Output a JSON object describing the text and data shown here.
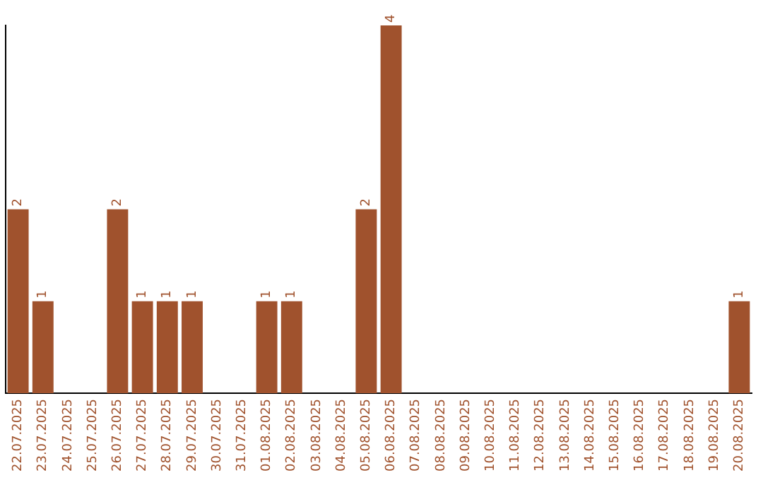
{
  "chart_data": {
    "type": "bar",
    "categories": [
      "22.07.2025",
      "23.07.2025",
      "24.07.2025",
      "25.07.2025",
      "26.07.2025",
      "27.07.2025",
      "28.07.2025",
      "29.07.2025",
      "30.07.2025",
      "31.07.2025",
      "01.08.2025",
      "02.08.2025",
      "03.08.2025",
      "04.08.2025",
      "05.08.2025",
      "06.08.2025",
      "07.08.2025",
      "08.08.2025",
      "09.08.2025",
      "10.08.2025",
      "11.08.2025",
      "12.08.2025",
      "13.08.2025",
      "14.08.2025",
      "15.08.2025",
      "16.08.2025",
      "17.08.2025",
      "18.08.2025",
      "19.08.2025",
      "20.08.2025"
    ],
    "values": [
      2,
      1,
      0,
      0,
      2,
      1,
      1,
      1,
      0,
      0,
      1,
      1,
      0,
      0,
      2,
      4,
      0,
      0,
      0,
      0,
      0,
      0,
      0,
      0,
      0,
      0,
      0,
      0,
      0,
      1
    ],
    "value_labels": [
      "2",
      "1",
      null,
      null,
      "2",
      "1",
      "1",
      "1",
      null,
      null,
      "1",
      "1",
      null,
      null,
      "2",
      "4",
      null,
      null,
      null,
      null,
      null,
      null,
      null,
      null,
      null,
      null,
      null,
      null,
      null,
      "1"
    ],
    "color": "#a0522d",
    "grid": false,
    "legend": false
  }
}
